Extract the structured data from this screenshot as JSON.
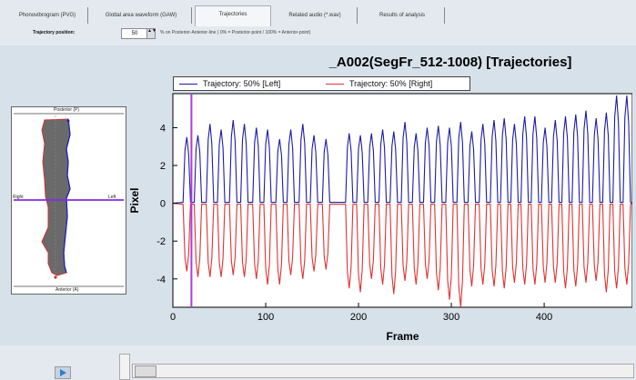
{
  "tabs": [
    {
      "label": "Phonovibrogram (PVG)",
      "active": false
    },
    {
      "label": "Glottal area waveform (GAW)",
      "active": false
    },
    {
      "label": "Trajectories",
      "active": true
    },
    {
      "label": "Related audio (*.wav)",
      "active": false
    },
    {
      "label": "Results of analysis",
      "active": false
    }
  ],
  "controls": {
    "trajectory_label": "Trajectory position:",
    "trajectory_value": "50",
    "spin_arrows": "▲▼",
    "trajectory_hint": "% on Posterior-Anterior-line  ( 0% = Posterior-point / 100% = Anterior-point)"
  },
  "mini_view": {
    "top_label": "Posterior (P)",
    "bottom_label": "Anterior (A)",
    "left_label": "Right",
    "right_label": "Left"
  },
  "chart_data": {
    "type": "line",
    "title": "_A002(SegFr_512-1008) [Trajectories]",
    "xlabel": "Frame",
    "ylabel": "Pixel",
    "xlim": [
      0,
      495
    ],
    "ylim": [
      -5.5,
      5.8
    ],
    "xticks": [
      0,
      100,
      200,
      300,
      400
    ],
    "yticks": [
      4,
      2,
      0,
      -2,
      -4
    ],
    "grid": false,
    "legend_position": "top",
    "cursor_x": 20,
    "cycle_peaks_x": [
      15,
      27,
      40,
      52,
      65,
      77,
      90,
      102,
      115,
      127,
      140,
      152,
      165,
      190,
      202,
      214,
      226,
      238,
      250,
      262,
      274,
      286,
      298,
      310,
      322,
      334,
      346,
      357,
      368,
      379,
      390,
      401,
      412,
      423,
      434,
      445,
      456,
      467,
      478,
      489
    ],
    "series": [
      {
        "name": "Trajectory: 50% [Left]",
        "color": "#1c1ca8",
        "peaks": [
          3.5,
          3.6,
          4.2,
          3.9,
          4.4,
          4.2,
          4.0,
          3.9,
          3.4,
          3.9,
          4.2,
          3.6,
          3.4,
          3.7,
          3.6,
          3.7,
          3.9,
          3.8,
          4.3,
          3.7,
          4.0,
          4.1,
          4.0,
          4.3,
          3.8,
          4.2,
          4.4,
          4.5,
          4.2,
          4.6,
          4.6,
          4.0,
          4.4,
          4.6,
          4.7,
          4.9,
          4.5,
          4.8,
          5.7,
          5.7
        ]
      },
      {
        "name": "Trajectory: 50% [Right]",
        "color": "#e03232",
        "troughs": [
          -3.6,
          -3.9,
          -3.9,
          -3.9,
          -3.8,
          -3.9,
          -4.0,
          -4.3,
          -4.3,
          -3.8,
          -4.0,
          -3.6,
          -3.5,
          -4.5,
          -4.7,
          -4.0,
          -4.3,
          -4.8,
          -4.1,
          -4.3,
          -4.0,
          -4.6,
          -5.1,
          -5.5,
          -4.4,
          -4.3,
          -4.4,
          -4.5,
          -4.2,
          -4.3,
          -4.3,
          -4.2,
          -4.2,
          -4.5,
          -4.4,
          -4.2,
          -4.1,
          -4.7,
          -4.5,
          -4.3
        ]
      }
    ]
  },
  "playback": {
    "play_icon": "play-icon"
  }
}
